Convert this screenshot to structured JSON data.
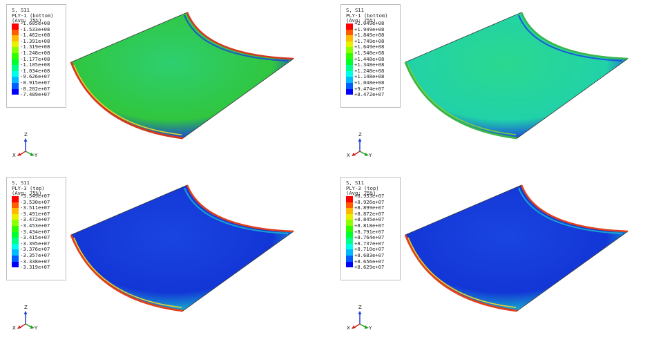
{
  "panels": [
    {
      "title": "S, S11",
      "ply": "PLY-1 (bottom)",
      "avg": "(Avg: 75%)",
      "legend_values": [
        "-1.605e+08",
        "-1.533e+08",
        "-1.462e+08",
        "-1.391e+08",
        "-1.319e+08",
        "-1.248e+08",
        "-1.177e+08",
        "-1.105e+08",
        "-1.034e+08",
        "-9.626e+07",
        "-8.915e+07",
        "-8.202e+07",
        "-7.489e+07"
      ],
      "contour": {
        "base": "#31c63f",
        "inner": "#2dcf70",
        "edge": "#1b3ee0",
        "rim": "#d5361f",
        "mid": "#e8d52a"
      }
    },
    {
      "title": "S, S11",
      "ply": "PLY-1 (bottom)",
      "avg": "(Avg: 75%)",
      "legend_values": [
        "+2.049e+08",
        "+1.949e+08",
        "+1.849e+08",
        "+1.749e+08",
        "+1.649e+08",
        "+1.548e+08",
        "+1.448e+08",
        "+1.348e+08",
        "+1.248e+08",
        "+1.148e+08",
        "+1.048e+08",
        "+9.474e+07",
        "+8.472e+07"
      ],
      "contour": {
        "base": "#21d2a8",
        "inner": "#2bd88f",
        "edge": "#1b3ee0",
        "rim": "#39b54a",
        "mid": "#7ad13a"
      }
    },
    {
      "title": "S, S11",
      "ply": "PLY-3 (top)",
      "avg": "(Avg: 75%)",
      "legend_values": [
        "-3.549e+07",
        "-3.530e+07",
        "-3.511e+07",
        "-3.491e+07",
        "-3.472e+07",
        "-3.453e+07",
        "-3.434e+07",
        "-3.415e+07",
        "-3.395e+07",
        "-3.376e+07",
        "-3.357e+07",
        "-3.338e+07",
        "-3.319e+07"
      ],
      "contour": {
        "base": "#1336d6",
        "inner": "#1a45e0",
        "edge": "#18b8d0",
        "rim": "#e0401c",
        "mid": "#e8d52a"
      }
    },
    {
      "title": "S, S11",
      "ply": "PLY-3 (top)",
      "avg": "(Avg: 75%)",
      "legend_values": [
        "+8.953e+07",
        "+8.926e+07",
        "+8.899e+07",
        "+8.872e+07",
        "+8.845e+07",
        "+8.818e+07",
        "+8.791e+07",
        "+8.764e+07",
        "+8.737e+07",
        "+8.710e+07",
        "+8.683e+07",
        "+8.656e+07",
        "+8.629e+07"
      ],
      "contour": {
        "base": "#1336d6",
        "inner": "#1a45e0",
        "edge": "#18b8d0",
        "rim": "#e0401c",
        "mid": "#e8d52a"
      }
    }
  ],
  "legend_colors": [
    "#ff0000",
    "#ff5d00",
    "#ffb900",
    "#e8f000",
    "#8cff00",
    "#2fff00",
    "#00ff2e",
    "#00ff8b",
    "#00ffe8",
    "#00b9ff",
    "#005dff",
    "#0000ff"
  ],
  "triad": {
    "z": "Z",
    "x": "X",
    "y": "Y",
    "z_color": "#1f3fd6",
    "x_color": "#d02020",
    "y_color": "#20a020"
  }
}
